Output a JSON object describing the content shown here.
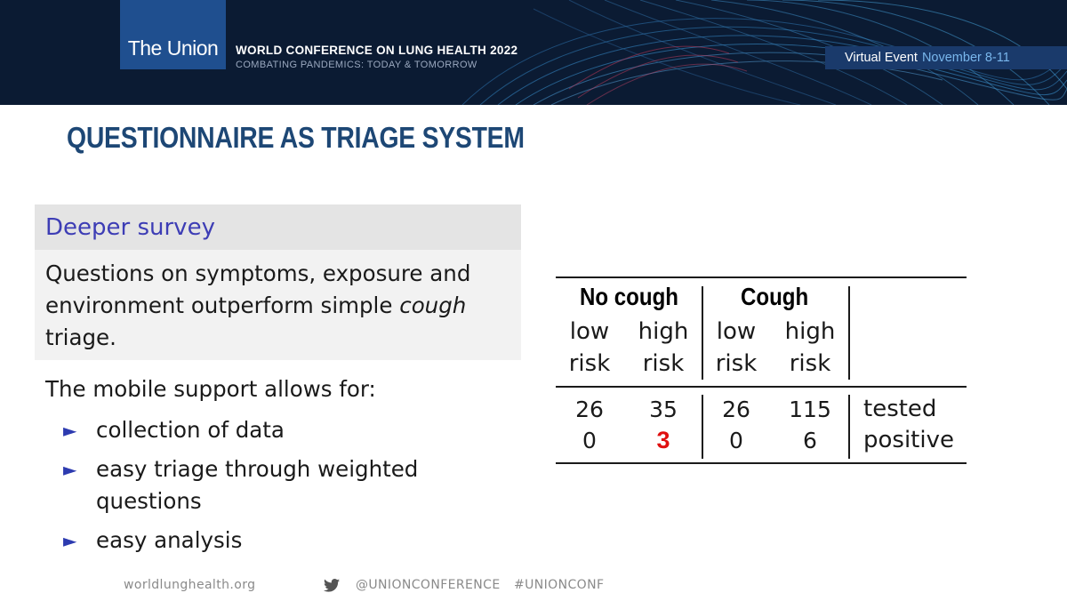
{
  "banner": {
    "logo": "The Union",
    "conference_title": "WORLD CONFERENCE ON LUNG HEALTH 2022",
    "conference_subtitle": "COMBATING PANDEMICS: TODAY & TOMORROW",
    "virtual_label": "Virtual Event",
    "virtual_dates": "November 8-11"
  },
  "slide": {
    "title": "QUESTIONNAIRE AS TRIAGE SYSTEM",
    "block": {
      "heading": "Deeper survey",
      "body_part1": "Questions on symptoms, exposure and environment outperform simple ",
      "body_emphasis": "cough",
      "body_part2": " triage."
    },
    "mobile": {
      "intro": "The mobile support allows for:",
      "bullets": [
        "collection of data",
        "easy triage through weighted questions",
        "easy analysis"
      ]
    }
  },
  "table": {
    "groups": [
      "No cough",
      "Cough"
    ],
    "subheaders": [
      {
        "line1": "low",
        "line2": "risk"
      },
      {
        "line1": "high",
        "line2": "risk"
      },
      {
        "line1": "low",
        "line2": "risk"
      },
      {
        "line1": "high",
        "line2": "risk"
      }
    ],
    "rows": [
      {
        "label": "tested",
        "values": [
          "26",
          "35",
          "26",
          "115"
        ]
      },
      {
        "label": "positive",
        "values": [
          "0",
          "3",
          "0",
          "6"
        ]
      }
    ],
    "highlight_color": "#e01010"
  },
  "footer": {
    "website": "worldlunghealth.org",
    "twitter_handle": "@UNIONCONFERENCE",
    "hashtag": "#UNIONCONF"
  },
  "colors": {
    "banner_bg": "#0b1b33",
    "logo_bg": "#1f4f8f",
    "title": "#1d4775",
    "block_heading_text": "#3d3db5"
  }
}
